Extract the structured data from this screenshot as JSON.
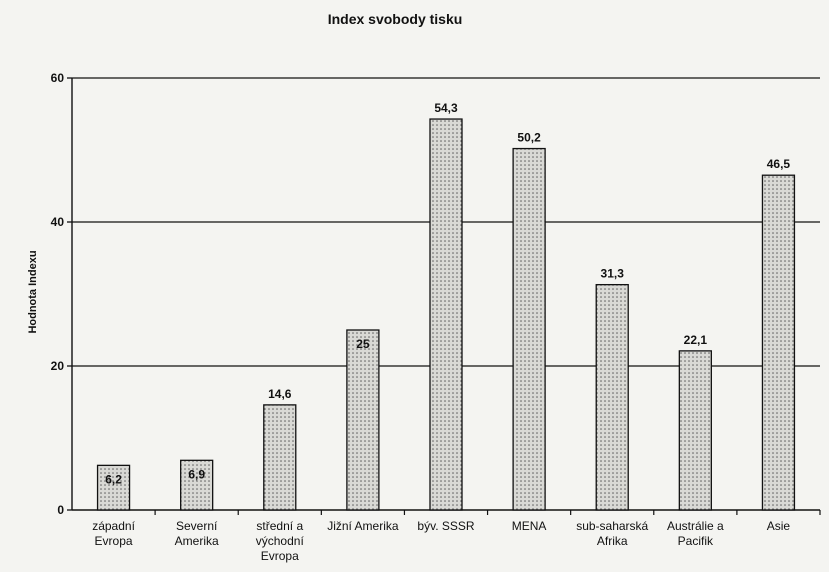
{
  "chart_data": {
    "type": "bar",
    "title": "Index svobody tisku",
    "ylabel": "Hodnota Indexu",
    "xlabel": "",
    "ylim": [
      0,
      60
    ],
    "yticks": [
      0,
      20,
      40,
      60
    ],
    "grid": true,
    "categories": [
      [
        "západní",
        "Evropa"
      ],
      [
        "Severní",
        "Amerika"
      ],
      [
        "střední a",
        "východní",
        "Evropa"
      ],
      [
        "Jižní Amerika"
      ],
      [
        "býv. SSSR"
      ],
      [
        "MENA"
      ],
      [
        "sub-saharská",
        "Afrika"
      ],
      [
        "Austrálie a",
        "Pacifik"
      ],
      [
        "Asie"
      ]
    ],
    "values": [
      6.2,
      6.9,
      14.6,
      25,
      54.3,
      50.2,
      31.3,
      22.1,
      46.5
    ],
    "data_labels": [
      "6,2",
      "6,9",
      "14,6",
      "25",
      "54,3",
      "50,2",
      "31,3",
      "22,1",
      "46,5"
    ],
    "colors": {
      "bar_fill": "#d9d9d5",
      "bar_dots": "#555555",
      "axis": "#111111"
    }
  }
}
